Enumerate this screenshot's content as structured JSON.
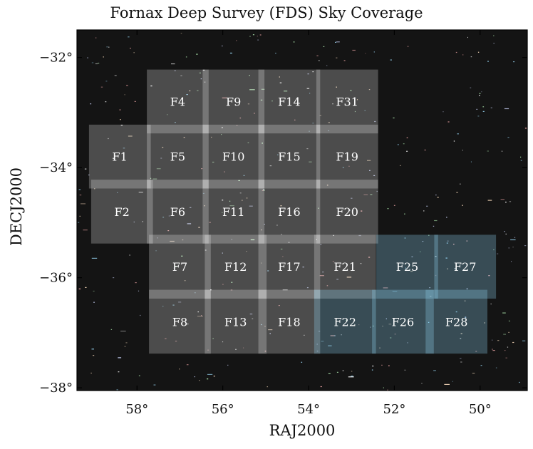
{
  "chart_data": {
    "type": "scatter",
    "title": "Fornax Deep Survey (FDS) Sky Coverage",
    "xlabel": "RAJ2000",
    "ylabel": "DECJ2000",
    "xlim": [
      59.4,
      48.9
    ],
    "ylim": [
      -38.05,
      -31.5
    ],
    "x_ticks": [
      {
        "value": 58,
        "label": "58°"
      },
      {
        "value": 56,
        "label": "56°"
      },
      {
        "value": 54,
        "label": "54°"
      },
      {
        "value": 52,
        "label": "52°"
      },
      {
        "value": 50,
        "label": "50°"
      }
    ],
    "y_ticks": [
      {
        "value": -32,
        "label": "−32°"
      },
      {
        "value": -34,
        "label": "−34°"
      },
      {
        "value": -36,
        "label": "−36°"
      },
      {
        "value": -38,
        "label": "−38°"
      }
    ],
    "background": "star field image",
    "fields": [
      {
        "name": "F4",
        "ra": 57.05,
        "dec": -32.8,
        "group": "white"
      },
      {
        "name": "F9",
        "ra": 55.75,
        "dec": -32.8,
        "group": "white"
      },
      {
        "name": "F14",
        "ra": 54.45,
        "dec": -32.8,
        "group": "white"
      },
      {
        "name": "F31",
        "ra": 53.1,
        "dec": -32.8,
        "group": "white"
      },
      {
        "name": "F1",
        "ra": 58.4,
        "dec": -33.8,
        "group": "white"
      },
      {
        "name": "F5",
        "ra": 57.05,
        "dec": -33.8,
        "group": "white"
      },
      {
        "name": "F10",
        "ra": 55.75,
        "dec": -33.8,
        "group": "white"
      },
      {
        "name": "F15",
        "ra": 54.45,
        "dec": -33.8,
        "group": "white"
      },
      {
        "name": "F19",
        "ra": 53.1,
        "dec": -33.8,
        "group": "white"
      },
      {
        "name": "F2",
        "ra": 58.35,
        "dec": -34.8,
        "group": "white"
      },
      {
        "name": "F6",
        "ra": 57.05,
        "dec": -34.8,
        "group": "white"
      },
      {
        "name": "F11",
        "ra": 55.75,
        "dec": -34.8,
        "group": "white"
      },
      {
        "name": "F16",
        "ra": 54.45,
        "dec": -34.8,
        "group": "white"
      },
      {
        "name": "F20",
        "ra": 53.1,
        "dec": -34.8,
        "group": "white"
      },
      {
        "name": "F7",
        "ra": 57.0,
        "dec": -35.8,
        "group": "white"
      },
      {
        "name": "F12",
        "ra": 55.7,
        "dec": -35.8,
        "group": "white"
      },
      {
        "name": "F17",
        "ra": 54.45,
        "dec": -35.8,
        "group": "white"
      },
      {
        "name": "F21",
        "ra": 53.15,
        "dec": -35.8,
        "group": "white"
      },
      {
        "name": "F25",
        "ra": 51.7,
        "dec": -35.8,
        "group": "blue"
      },
      {
        "name": "F27",
        "ra": 50.35,
        "dec": -35.8,
        "group": "blue"
      },
      {
        "name": "F8",
        "ra": 57.0,
        "dec": -36.8,
        "group": "white"
      },
      {
        "name": "F13",
        "ra": 55.7,
        "dec": -36.8,
        "group": "white"
      },
      {
        "name": "F18",
        "ra": 54.45,
        "dec": -36.8,
        "group": "white"
      },
      {
        "name": "F22",
        "ra": 53.15,
        "dec": -36.8,
        "group": "blue"
      },
      {
        "name": "F26",
        "ra": 51.8,
        "dec": -36.8,
        "group": "blue"
      },
      {
        "name": "F28",
        "ra": 50.55,
        "dec": -36.8,
        "group": "blue"
      }
    ],
    "colors": {
      "background": "#141414",
      "white_field": "#ffffff",
      "blue_field": "#8fd0ee"
    }
  }
}
